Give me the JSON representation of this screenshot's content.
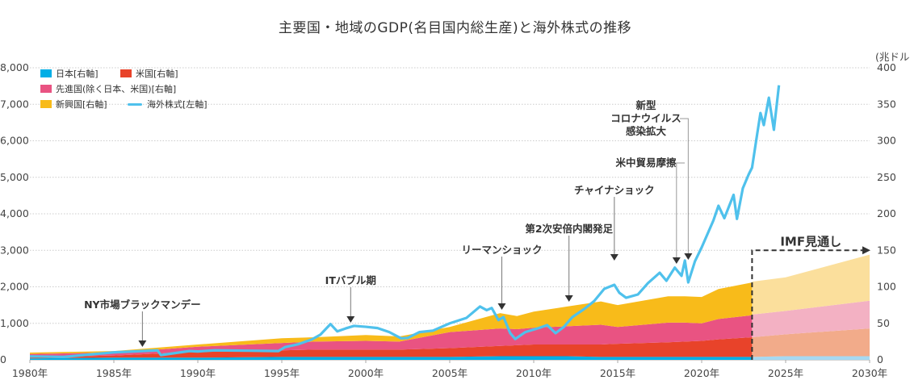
{
  "chart_data": {
    "type": "area",
    "title": "主要国・地域のGDP(名目国内総生産)と海外株式の推移",
    "x_tick_labels": [
      "1980年",
      "1985年",
      "1990年",
      "1995年",
      "2000年",
      "2005年",
      "2010年",
      "2015年",
      "2020年",
      "2025年",
      "2030年"
    ],
    "x_ticks": [
      1980,
      1985,
      1990,
      1995,
      2000,
      2005,
      2010,
      2015,
      2020,
      2025,
      2030
    ],
    "xlim": [
      1980,
      2030
    ],
    "left_axis": {
      "ylim": [
        0,
        8000
      ],
      "tick_labels": [
        "0",
        "1,000",
        "2,000",
        "3,000",
        "4,000",
        "5,000",
        "6,000",
        "7,000",
        "8,000"
      ]
    },
    "right_axis": {
      "unit": "(兆ドル)",
      "ylim": [
        0,
        400
      ],
      "tick_labels": [
        "0",
        "50",
        "100",
        "150",
        "200",
        "250",
        "300",
        "350",
        "400"
      ]
    },
    "grid": true,
    "legend_placement": "top-left",
    "years": [
      1980,
      1985,
      1990,
      1995,
      1997,
      2000,
      2002,
      2005,
      2008,
      2009,
      2010,
      2012,
      2014,
      2015,
      2018,
      2019,
      2020,
      2021,
      2023
    ],
    "series": [
      {
        "name": "日本[右軸]",
        "color": "#00aee6",
        "values": [
          2,
          3,
          3,
          4,
          4,
          4,
          4,
          4,
          5,
          5,
          5,
          5,
          4,
          4,
          4,
          4,
          4,
          4,
          4
        ]
      },
      {
        "name": "米国[右軸]",
        "color": "#e8432a",
        "values": [
          1,
          3,
          8,
          9,
          10,
          10,
          10,
          12,
          14,
          15,
          16,
          16,
          17,
          18,
          20,
          21,
          22,
          24,
          27
        ]
      },
      {
        "name": "先進国(除く日本、米国)[右軸]",
        "color": "#e95382",
        "values": [
          5,
          4,
          7,
          10,
          11,
          12,
          11,
          22,
          24,
          22,
          23,
          25,
          27,
          23,
          27,
          26,
          24,
          28,
          30
        ]
      },
      {
        "name": "新興国[右軸]",
        "color": "#f8bb1a",
        "values": [
          2,
          2,
          3,
          6.5,
          6,
          8,
          7,
          7,
          21,
          18,
          22,
          27,
          32,
          30,
          36,
          36,
          36,
          41,
          45
        ]
      }
    ],
    "projection": {
      "label": "IMF見通し",
      "years": [
        2023,
        2025,
        2030
      ],
      "series": [
        {
          "name": "日本",
          "color": "#a6d9f2",
          "values": [
            4,
            5,
            5
          ]
        },
        {
          "name": "米国",
          "color": "#f2ab8a",
          "values": [
            27,
            30,
            38
          ]
        },
        {
          "name": "先進国(除く日本、米国)",
          "color": "#f3b1c3",
          "values": [
            31,
            32,
            38
          ]
        },
        {
          "name": "新興国",
          "color": "#fbdf9c",
          "values": [
            45,
            46,
            63
          ]
        }
      ]
    },
    "line": {
      "name": "海外株式[左軸]",
      "color": "#4fc1ec",
      "points": [
        [
          1980,
          95
        ],
        [
          1982,
          80
        ],
        [
          1985,
          205
        ],
        [
          1987.6,
          260
        ],
        [
          1987.8,
          130
        ],
        [
          1989.5,
          240
        ],
        [
          1990,
          230
        ],
        [
          1991,
          260
        ],
        [
          1993,
          250
        ],
        [
          1994.8,
          240
        ],
        [
          1995.2,
          350
        ],
        [
          1996,
          430
        ],
        [
          1996.8,
          560
        ],
        [
          1997.3,
          690
        ],
        [
          1997.9,
          980
        ],
        [
          1998.3,
          780
        ],
        [
          1998.8,
          860
        ],
        [
          1999.3,
          930
        ],
        [
          2000,
          905
        ],
        [
          2000.7,
          870
        ],
        [
          2001.4,
          760
        ],
        [
          2002.1,
          590
        ],
        [
          2002.5,
          600
        ],
        [
          2003.2,
          760
        ],
        [
          2004,
          800
        ],
        [
          2005,
          1000
        ],
        [
          2006,
          1150
        ],
        [
          2006.8,
          1460
        ],
        [
          2007.2,
          1360
        ],
        [
          2007.5,
          1420
        ],
        [
          2007.9,
          1090
        ],
        [
          2008.2,
          1170
        ],
        [
          2008.6,
          730
        ],
        [
          2008.9,
          570
        ],
        [
          2009.5,
          760
        ],
        [
          2010.3,
          870
        ],
        [
          2010.8,
          950
        ],
        [
          2011.3,
          730
        ],
        [
          2011.8,
          905
        ],
        [
          2012.3,
          1170
        ],
        [
          2013,
          1390
        ],
        [
          2013.6,
          1610
        ],
        [
          2014.2,
          1945
        ],
        [
          2014.8,
          2055
        ],
        [
          2015.1,
          1835
        ],
        [
          2015.5,
          1700
        ],
        [
          2016.2,
          1790
        ],
        [
          2016.8,
          2100
        ],
        [
          2017.5,
          2385
        ],
        [
          2017.9,
          2165
        ],
        [
          2018.4,
          2525
        ],
        [
          2018.8,
          2300
        ],
        [
          2019.0,
          2720
        ],
        [
          2019.2,
          2120
        ],
        [
          2019.6,
          2700
        ],
        [
          2020.0,
          3080
        ],
        [
          2020.7,
          3820
        ],
        [
          2021.0,
          4220
        ],
        [
          2021.35,
          3880
        ],
        [
          2021.9,
          4520
        ],
        [
          2022.1,
          3860
        ],
        [
          2022.45,
          4700
        ],
        [
          2022.8,
          5080
        ],
        [
          2023.0,
          5265
        ],
        [
          2023.3,
          6170
        ],
        [
          2023.5,
          6760
        ],
        [
          2023.7,
          6430
        ],
        [
          2024.0,
          7180
        ],
        [
          2024.3,
          6300
        ],
        [
          2024.6,
          7520
        ]
      ]
    },
    "annotations": [
      {
        "text": "NY市場ブラックマンデー",
        "year": 1986.7
      },
      {
        "text": "ITバブル期",
        "year": 1999.1
      },
      {
        "text": "リーマンショック",
        "year": 2008.1
      },
      {
        "text": "第2次安倍内閣発足",
        "year": 2012.1
      },
      {
        "text": "チャイナショック",
        "year": 2014.8
      },
      {
        "text": "米中貿易摩擦",
        "year": 2018.5
      },
      {
        "text": "新型\nコロナウイルス\n感染拡大",
        "year": 2019.2
      }
    ]
  }
}
